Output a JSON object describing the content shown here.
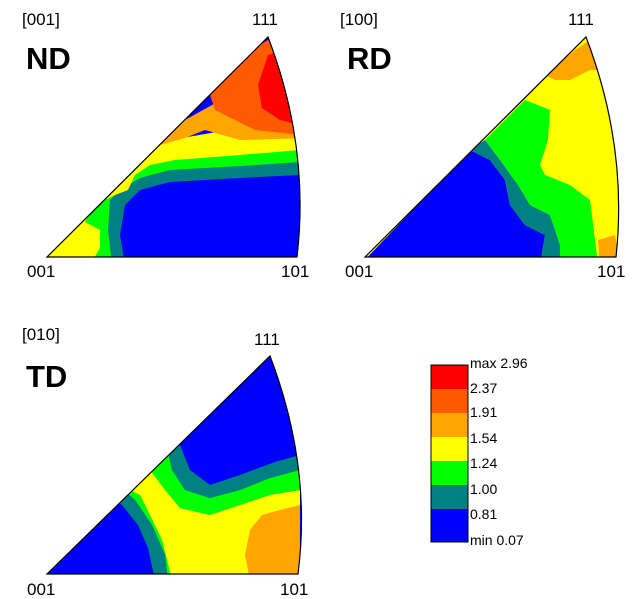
{
  "panels": [
    {
      "id": "nd",
      "direction": "[001]",
      "name": "ND",
      "corner_top": "111",
      "corner_left": "001",
      "corner_right": "101"
    },
    {
      "id": "rd",
      "direction": "[100]",
      "name": "RD",
      "corner_top": "111",
      "corner_left": "001",
      "corner_right": "101"
    },
    {
      "id": "td",
      "direction": "[010]",
      "name": "TD",
      "corner_top": "111",
      "corner_left": "001",
      "corner_right": "101"
    }
  ],
  "legend": {
    "levels": [
      {
        "label": "max 2.96",
        "color": "#ff0000"
      },
      {
        "label": "2.37",
        "color": "#ff5a00"
      },
      {
        "label": "1.91",
        "color": "#ffa500"
      },
      {
        "label": "1.54",
        "color": "#ffff00"
      },
      {
        "label": "1.24",
        "color": "#00ff00"
      },
      {
        "label": "1.00",
        "color": "#008080"
      },
      {
        "label": "0.81",
        "color": "#0000ff"
      },
      {
        "label": "min 0.07",
        "color": ""
      }
    ]
  }
}
